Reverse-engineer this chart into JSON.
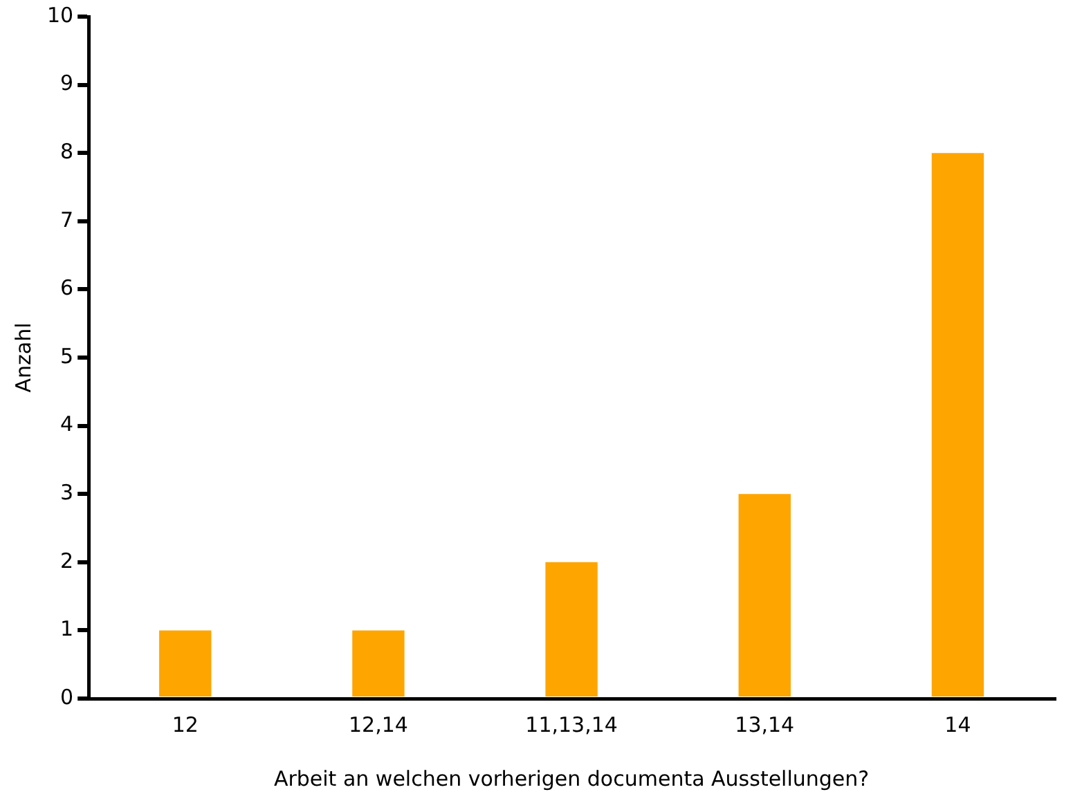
{
  "chart_data": {
    "type": "bar",
    "xlabel": "Arbeit an welchen vorherigen documenta Ausstellungen?",
    "ylabel": "Anzahl",
    "categories": [
      "12",
      "12,14",
      "11,13,14",
      "13,14",
      "14"
    ],
    "values": [
      1,
      1,
      2,
      3,
      8
    ],
    "color": "#ffa500",
    "ylim": [
      0,
      10
    ],
    "yticks": [
      0,
      1,
      2,
      3,
      4,
      5,
      6,
      7,
      8,
      9,
      10
    ],
    "grid": false,
    "legend": false
  }
}
